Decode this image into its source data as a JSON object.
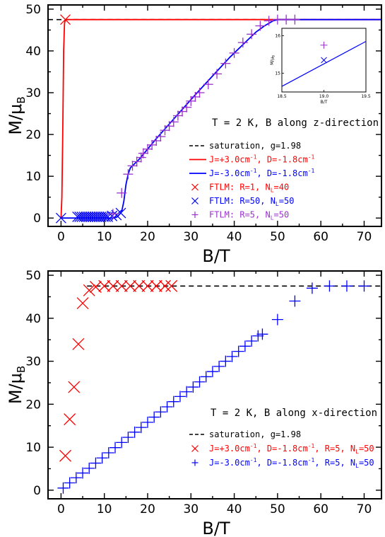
{
  "chart_data": [
    {
      "type": "line",
      "panel": "top",
      "xlabel": "B/T",
      "ylabel": "M/μ",
      "ylabel_sub": "B",
      "xlim": [
        -3,
        74
      ],
      "ylim": [
        -2,
        51
      ],
      "xticks": [
        0,
        10,
        20,
        30,
        40,
        50,
        60,
        70
      ],
      "yticks": [
        0,
        10,
        20,
        30,
        40,
        50
      ],
      "annotation": "T = 2 K, B along z-direction",
      "legend": [
        {
          "label": "saturation, g=1.98",
          "color": "#000000",
          "style": "dashed"
        },
        {
          "label_parts": [
            "J=+3.0cm",
            "-1",
            ", D=-1.8cm",
            "-1"
          ],
          "color": "#ff0000",
          "style": "line"
        },
        {
          "label_parts": [
            "J=-3.0cm",
            "-1",
            ", D=-1.8cm",
            "-1"
          ],
          "color": "#0000ff",
          "style": "line"
        },
        {
          "label_parts": [
            "FTLM: R=1, N",
            "L",
            "=40"
          ],
          "color": "#ff0000",
          "style": "x"
        },
        {
          "label_parts": [
            "FTLM: R=50, N",
            "L",
            "=50"
          ],
          "color": "#0000ff",
          "style": "x"
        },
        {
          "label_parts": [
            "FTLM: R=5, N",
            "L",
            "=50"
          ],
          "color": "#9a32cd",
          "style": "+"
        }
      ],
      "series": [
        {
          "style": "dashed",
          "color": "#000000",
          "x": [
            -3,
            74
          ],
          "y": [
            47.5,
            47.5
          ]
        },
        {
          "style": "line",
          "color": "#ff0000",
          "x": [
            0,
            0.2,
            0.4,
            0.6,
            0.8,
            1,
            74
          ],
          "y": [
            0,
            5,
            20,
            40,
            46.5,
            47.5,
            47.5
          ]
        },
        {
          "style": "line",
          "color": "#0000ff",
          "x": [
            0,
            12,
            13,
            14,
            14.5,
            15,
            15.5,
            16,
            17,
            18,
            20,
            22,
            25,
            28,
            31,
            35,
            39,
            42,
            45,
            47,
            49,
            50,
            51,
            74
          ],
          "y": [
            0,
            0,
            0.3,
            1.5,
            4,
            8,
            10.5,
            12,
            13,
            14,
            16.5,
            19,
            22.5,
            26,
            29.5,
            34,
            38.5,
            41.5,
            44.5,
            46,
            47.2,
            47.5,
            47.5,
            47.5
          ]
        },
        {
          "style": "x",
          "color": "#ff0000",
          "x": [
            1
          ],
          "y": [
            47.5
          ]
        },
        {
          "style": "x",
          "color": "#0000ff",
          "x": [
            0,
            3.8,
            4.3,
            4.8,
            5.3,
            5.8,
            6.3,
            6.8,
            7.3,
            7.8,
            8.3,
            8.8,
            9.3,
            9.8,
            10.3,
            10.8,
            11.8,
            12.8,
            13.8
          ],
          "y": [
            0,
            0.3,
            0.3,
            0.3,
            0.3,
            0.3,
            0.3,
            0.3,
            0.3,
            0.3,
            0.3,
            0.3,
            0.3,
            0.3,
            0.3,
            0.3,
            0.5,
            0.7,
            1.2
          ]
        },
        {
          "style": "+",
          "color": "#9a32cd",
          "x": [
            12,
            14,
            15.5,
            16.5,
            17.5,
            18.5,
            19,
            20,
            21,
            22,
            23,
            24,
            25,
            26,
            27,
            28,
            29,
            30,
            31,
            32,
            34,
            36,
            38,
            40,
            42,
            44,
            46,
            48,
            50,
            52,
            54
          ],
          "y": [
            1,
            6,
            10.5,
            12.5,
            13.5,
            14.5,
            15.5,
            16.5,
            17.5,
            18.5,
            19.5,
            21,
            22,
            23,
            24.5,
            25.5,
            26.5,
            28,
            29,
            30,
            32,
            34.5,
            37,
            39.5,
            42,
            44,
            46,
            47.2,
            47.5,
            47.5,
            47.5
          ]
        }
      ],
      "inset": {
        "xlabel": "B/T",
        "ylabel": "M/μ",
        "ylabel_sub": "B",
        "xlim": [
          18.5,
          19.5
        ],
        "ylim": [
          14.5,
          16.2
        ],
        "xticks": [
          "18.5",
          "19.0",
          "19.5"
        ],
        "yticks": [
          "15",
          "16"
        ],
        "line": {
          "color": "#0000ff",
          "x": [
            18.5,
            19.5
          ],
          "y": [
            14.65,
            15.85
          ]
        },
        "x_marker": {
          "color": "#0000ff",
          "x": 19.0,
          "y": 15.35
        },
        "plus_marker": {
          "color": "#9a32cd",
          "x": 19.0,
          "y": 15.75
        }
      }
    },
    {
      "type": "scatter",
      "panel": "bottom",
      "xlabel": "B/T",
      "ylabel": "M/μ",
      "ylabel_sub": "B",
      "xlim": [
        -3,
        74
      ],
      "ylim": [
        -2,
        51
      ],
      "xticks": [
        0,
        10,
        20,
        30,
        40,
        50,
        60,
        70
      ],
      "yticks": [
        0,
        10,
        20,
        30,
        40,
        50
      ],
      "annotation": "T = 2 K, B along x-direction",
      "legend": [
        {
          "label": "saturation, g=1.98",
          "color": "#000000",
          "style": "dashed"
        },
        {
          "label_parts": [
            "J=+3.0cm",
            "-1",
            ", D=-1.8cm",
            "-1",
            ", R=5, N",
            "L",
            "=50"
          ],
          "color": "#ff0000",
          "style": "x"
        },
        {
          "label_parts": [
            "J=-3.0cm",
            "-1",
            ", D=-1.8cm",
            "-1",
            ", R=5, N",
            "L",
            "=50"
          ],
          "color": "#0000ff",
          "style": "+"
        }
      ],
      "series": [
        {
          "style": "dashed",
          "color": "#000000",
          "x": [
            6,
            74
          ],
          "y": [
            47.5,
            47.5
          ]
        },
        {
          "style": "x",
          "color": "#ff0000",
          "x": [
            1,
            2,
            3,
            4,
            5,
            6.5,
            8,
            10,
            12,
            14,
            16,
            18,
            20,
            22,
            24,
            25.5
          ],
          "y": [
            8,
            16.5,
            24,
            34,
            43.5,
            46.5,
            47.3,
            47.5,
            47.5,
            47.5,
            47.5,
            47.5,
            47.5,
            47.5,
            47.5,
            47.5
          ]
        },
        {
          "style": "+",
          "color": "#0000ff",
          "x": [
            0.5,
            2,
            3.5,
            5,
            6.5,
            8,
            9.5,
            11,
            12.5,
            14,
            15.5,
            17,
            18.5,
            20,
            21.5,
            23,
            24.5,
            26,
            27.5,
            29,
            30.5,
            32,
            33.5,
            35,
            36.5,
            38,
            39.5,
            41,
            42.5,
            44,
            45.5,
            46.5,
            50,
            54,
            58,
            62,
            66,
            70
          ],
          "y": [
            0.5,
            1.7,
            2.9,
            4,
            5.1,
            6.3,
            7.5,
            8.7,
            9.9,
            11.1,
            12.3,
            13.5,
            14.6,
            15.8,
            17,
            18.2,
            19.4,
            20.6,
            21.8,
            22.9,
            24,
            25.2,
            26.4,
            27.6,
            28.8,
            30,
            31.1,
            32.3,
            33.5,
            34.7,
            35.9,
            36.3,
            39.7,
            44,
            47,
            47.5,
            47.5,
            47.5
          ]
        }
      ]
    }
  ]
}
